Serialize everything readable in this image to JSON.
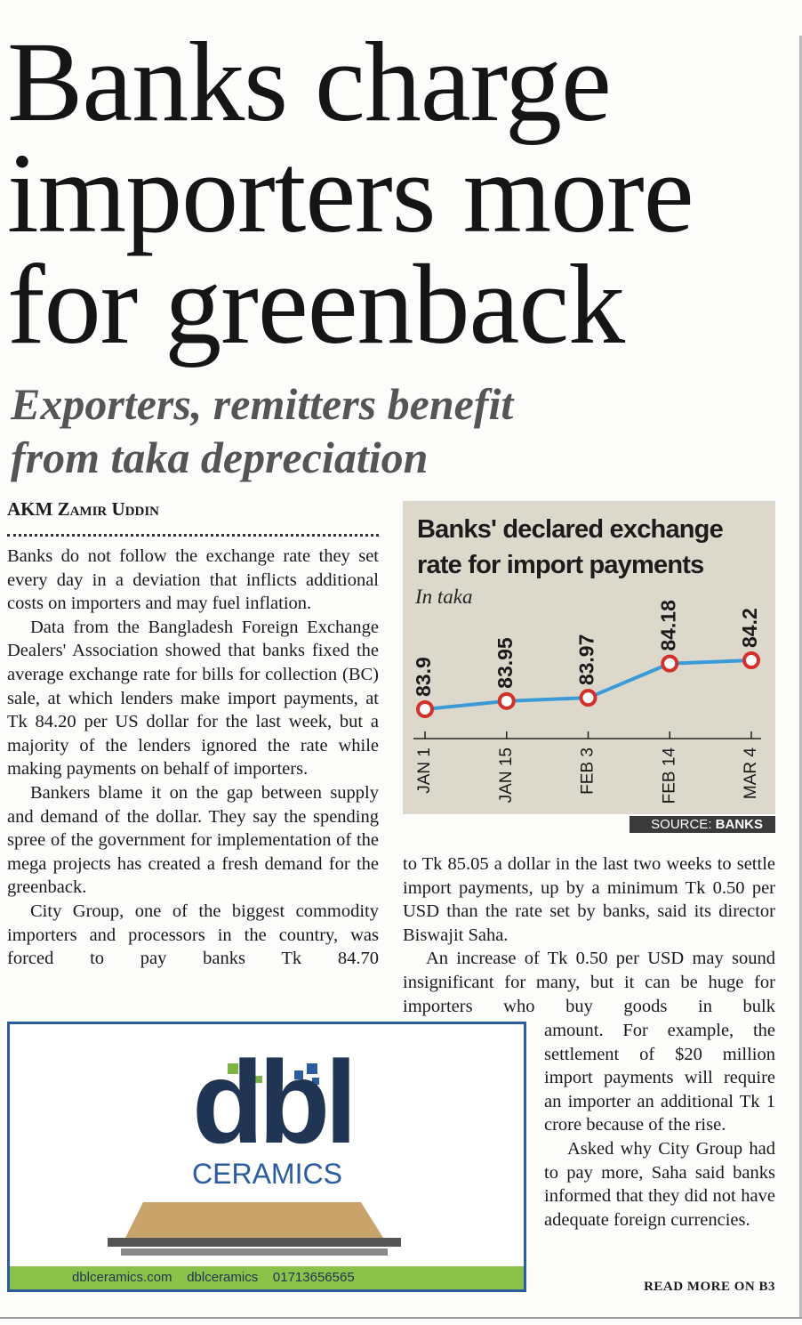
{
  "headline": [
    "Banks charge",
    "importers more",
    "for greenback"
  ],
  "subheadline": [
    "Exporters, remitters benefit",
    "from taka depreciation"
  ],
  "byline": "AKM Zamir Uddin",
  "article": {
    "left": [
      "Banks do not follow the exchange rate they set every day in a deviation that inflicts additional costs on importers and may fuel inflation.",
      "Data from the Bangladesh Foreign Exchange Dealers' Association showed that banks fixed the average exchange rate for bills for collection (BC) sale, at which lenders make import payments, at Tk 84.20 per US dollar for the last week, but a majority of the lenders ignored the rate while making payments on behalf of importers.",
      "Bankers blame it on the gap between supply and demand of the dollar. They say the spending spree of the government for implementation of the mega projects has created a fresh demand for the greenback.",
      "City Group, one of the biggest commodity importers and processors in the country, was forced to pay banks Tk 84.70"
    ],
    "right": [
      "to Tk 85.05 a dollar in the last two weeks to settle import payments, up by a minimum Tk 0.50 per USD than the rate set by banks, said its director Biswajit Saha.",
      "An increase of Tk 0.50 per USD may sound insignificant for many, but it can be huge for importers who buy goods in bulk"
    ],
    "narrow": [
      "amount. For example, the settlement of $20 million import payments will require an importer an additional Tk 1 crore because of the rise.",
      "Asked why City Group had to pay more, Saha said banks informed that they did not have adequate foreign currencies."
    ],
    "read_more": "READ MORE ON B3"
  },
  "chart_data": {
    "type": "line",
    "title": "Banks' declared exchange rate for import payments",
    "subtitle": "In taka",
    "categories": [
      "JAN 1",
      "JAN 15",
      "FEB 3",
      "FEB 14",
      "MAR 4"
    ],
    "values": [
      83.9,
      83.95,
      83.97,
      84.18,
      84.2
    ],
    "color": "#3b9bd8",
    "marker_color": "#d2302a",
    "source": {
      "label": "SOURCE:",
      "name": "BANKS"
    }
  },
  "ad": {
    "brand": "dbl",
    "tagline": "CERAMICS",
    "website": "dblceramics.com",
    "facebook": "dblceramics",
    "phone": "01713656565"
  }
}
